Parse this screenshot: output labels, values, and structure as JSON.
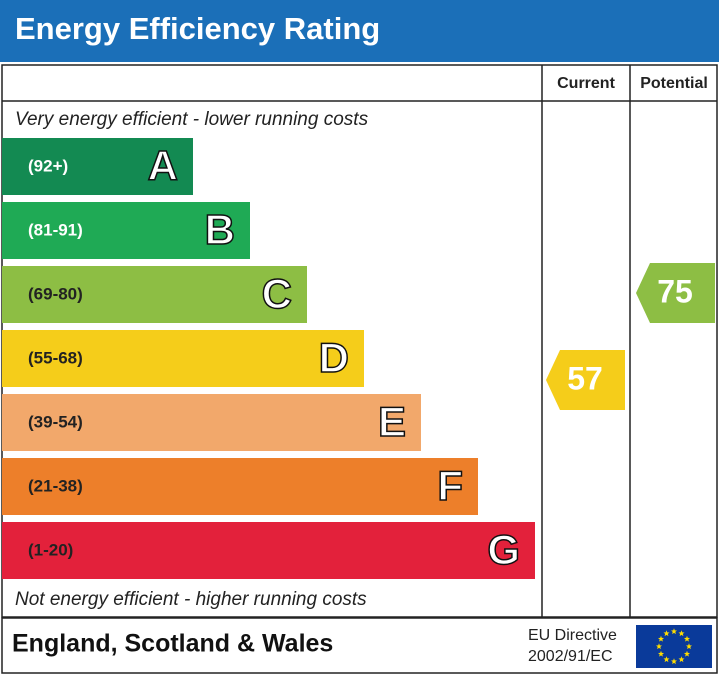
{
  "header": {
    "title": "Energy Efficiency Rating"
  },
  "columns": [
    "Current",
    "Potential"
  ],
  "top_note": "Very energy efficient - lower running costs",
  "bands": [
    {
      "range": "(92+)",
      "letter": "A",
      "color": "#138a52"
    },
    {
      "range": "(81-91)",
      "letter": "B",
      "color": "#1faa55"
    },
    {
      "range": "(69-80)",
      "letter": "C",
      "color": "#8dbe44"
    },
    {
      "range": "(55-68)",
      "letter": "D",
      "color": "#f5cd1a"
    },
    {
      "range": "(39-54)",
      "letter": "E",
      "color": "#f2a86b"
    },
    {
      "range": "(21-38)",
      "letter": "F",
      "color": "#ed7f2a"
    },
    {
      "range": "(1-20)",
      "letter": "G",
      "color": "#e3213b"
    }
  ],
  "bottom_note": "Not energy efficient - higher running costs",
  "current": {
    "value": 57
  },
  "potential": {
    "value": 75
  },
  "footer": {
    "region": "England, Scotland & Wales",
    "directive": [
      "EU Directive",
      "2002/91/EC"
    ]
  }
}
